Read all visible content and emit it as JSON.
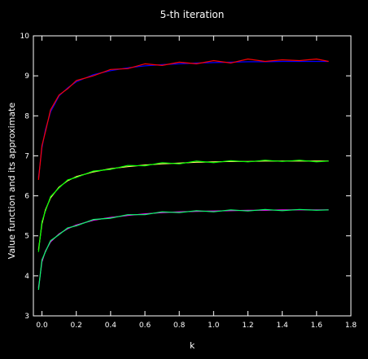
{
  "chart_data": {
    "type": "line",
    "title": "5-th iteration",
    "xlabel": "k",
    "ylabel": "Value function and its approximate",
    "xlim": [
      -0.05,
      1.8
    ],
    "ylim": [
      3,
      10
    ],
    "x_ticks": [
      "0.0",
      "0.2",
      "0.4",
      "0.6",
      "0.8",
      "1.0",
      "1.2",
      "1.4",
      "1.6",
      "1.8"
    ],
    "x_tick_values": [
      0.0,
      0.2,
      0.4,
      0.6,
      0.8,
      1.0,
      1.2,
      1.4,
      1.6,
      1.8
    ],
    "y_ticks": [
      "3",
      "4",
      "5",
      "6",
      "7",
      "8",
      "9",
      "10"
    ],
    "y_tick_values": [
      3,
      4,
      5,
      6,
      7,
      8,
      9,
      10
    ],
    "grid": false,
    "legend": "none",
    "series": [
      {
        "color": "#0000ff",
        "x": [
          -0.02,
          0.0,
          0.02,
          0.05,
          0.1,
          0.15,
          0.2,
          0.3,
          0.4,
          0.5,
          0.6,
          0.7,
          0.8,
          0.9,
          1.0,
          1.1,
          1.2,
          1.3,
          1.4,
          1.5,
          1.6,
          1.67
        ],
        "y": [
          6.45,
          7.2,
          7.65,
          8.1,
          8.5,
          8.7,
          8.85,
          9.03,
          9.13,
          9.2,
          9.25,
          9.28,
          9.3,
          9.32,
          9.33,
          9.34,
          9.35,
          9.35,
          9.36,
          9.36,
          9.36,
          9.36
        ]
      },
      {
        "color": "#ff0000",
        "x": [
          -0.02,
          0.0,
          0.02,
          0.05,
          0.1,
          0.15,
          0.2,
          0.3,
          0.4,
          0.5,
          0.6,
          0.7,
          0.8,
          0.9,
          1.0,
          1.1,
          1.2,
          1.3,
          1.4,
          1.5,
          1.6,
          1.67
        ],
        "y": [
          6.4,
          7.25,
          7.6,
          8.15,
          8.52,
          8.68,
          8.88,
          9.0,
          9.16,
          9.18,
          9.3,
          9.26,
          9.34,
          9.3,
          9.38,
          9.32,
          9.42,
          9.36,
          9.4,
          9.38,
          9.42,
          9.36
        ]
      },
      {
        "color": "#ffff66",
        "x": [
          -0.02,
          0.0,
          0.02,
          0.05,
          0.1,
          0.15,
          0.2,
          0.3,
          0.4,
          0.5,
          0.6,
          0.7,
          0.8,
          0.9,
          1.0,
          1.1,
          1.2,
          1.3,
          1.4,
          1.5,
          1.6,
          1.67
        ],
        "y": [
          4.65,
          5.3,
          5.65,
          5.95,
          6.22,
          6.38,
          6.48,
          6.6,
          6.68,
          6.73,
          6.77,
          6.8,
          6.82,
          6.84,
          6.85,
          6.86,
          6.86,
          6.87,
          6.87,
          6.87,
          6.87,
          6.87
        ]
      },
      {
        "color": "#00ff00",
        "x": [
          -0.02,
          0.0,
          0.02,
          0.05,
          0.1,
          0.15,
          0.2,
          0.3,
          0.4,
          0.5,
          0.6,
          0.7,
          0.8,
          0.9,
          1.0,
          1.1,
          1.2,
          1.3,
          1.4,
          1.5,
          1.6,
          1.67
        ],
        "y": [
          4.6,
          5.35,
          5.62,
          5.98,
          6.2,
          6.4,
          6.46,
          6.62,
          6.66,
          6.76,
          6.75,
          6.83,
          6.8,
          6.87,
          6.83,
          6.88,
          6.85,
          6.89,
          6.86,
          6.89,
          6.85,
          6.87
        ]
      },
      {
        "color": "#ff00ff",
        "x": [
          -0.02,
          0.0,
          0.02,
          0.05,
          0.1,
          0.15,
          0.2,
          0.3,
          0.4,
          0.5,
          0.6,
          0.7,
          0.8,
          0.9,
          1.0,
          1.1,
          1.2,
          1.3,
          1.4,
          1.5,
          1.6,
          1.67
        ],
        "y": [
          3.7,
          4.35,
          4.62,
          4.85,
          5.05,
          5.18,
          5.27,
          5.39,
          5.46,
          5.51,
          5.55,
          5.58,
          5.6,
          5.61,
          5.62,
          5.63,
          5.64,
          5.64,
          5.65,
          5.65,
          5.65,
          5.65
        ]
      },
      {
        "color": "#00ff66",
        "x": [
          -0.02,
          0.0,
          0.02,
          0.05,
          0.1,
          0.15,
          0.2,
          0.3,
          0.4,
          0.5,
          0.6,
          0.7,
          0.8,
          0.9,
          1.0,
          1.1,
          1.2,
          1.3,
          1.4,
          1.5,
          1.6,
          1.67
        ],
        "y": [
          3.65,
          4.4,
          4.6,
          4.88,
          5.03,
          5.2,
          5.25,
          5.41,
          5.44,
          5.53,
          5.53,
          5.6,
          5.58,
          5.63,
          5.6,
          5.65,
          5.62,
          5.66,
          5.63,
          5.66,
          5.64,
          5.65
        ]
      }
    ]
  }
}
